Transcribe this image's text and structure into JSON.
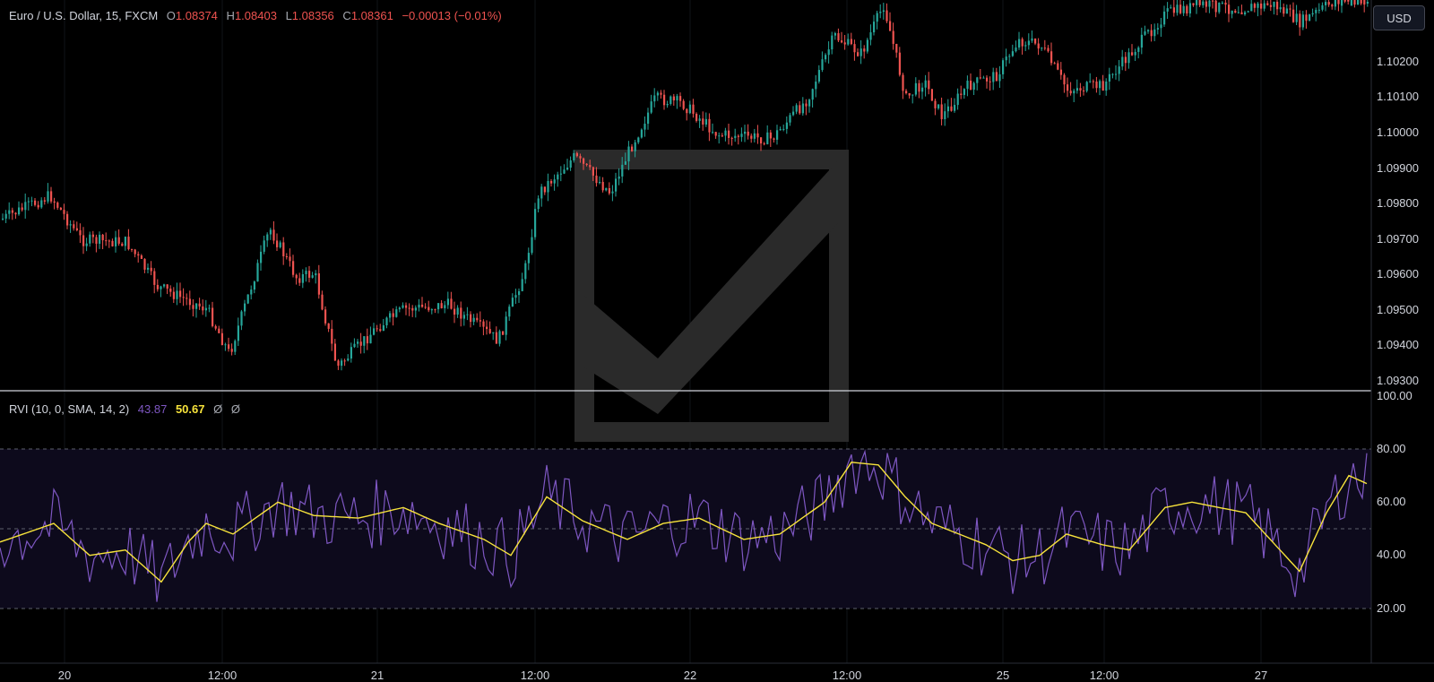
{
  "symbol": {
    "name": "Euro / U.S. Dollar, 15, FXCM",
    "open_label": "O",
    "open": "1.08374",
    "high_label": "H",
    "high": "1.08403",
    "low_label": "L",
    "low": "1.08356",
    "close_label": "C",
    "close": "1.08361",
    "change": "−0.00013 (−0.01%)"
  },
  "currency_button": "USD",
  "price_axis": [
    "1.10200",
    "1.10100",
    "1.10000",
    "1.09900",
    "1.09800",
    "1.09700",
    "1.09600",
    "1.09500",
    "1.09400",
    "1.09300"
  ],
  "indicator": {
    "name": "RVI (10, 0, SMA, 14, 2)",
    "value_rvi": "43.87",
    "value_signal": "50.67",
    "extra1": "Ø",
    "extra2": "Ø",
    "axis": [
      "100.00",
      "80.00",
      "60.00",
      "40.00",
      "20.00"
    ]
  },
  "time_axis": [
    "20",
    "12:00",
    "21",
    "12:00",
    "22",
    "12:00",
    "25",
    "12:00",
    "27"
  ],
  "colors": {
    "background": "#000000",
    "up_candle": "#26a69a",
    "down_candle": "#ef5350",
    "rvi_line": "#7e57c2",
    "signal_line": "#f7e33b",
    "band_fill": "#0d0a1c",
    "watermark": "#2a2a2a",
    "pane_separator": "#d1d4dc"
  },
  "watermark_icon": "checkmark-logo-icon"
}
